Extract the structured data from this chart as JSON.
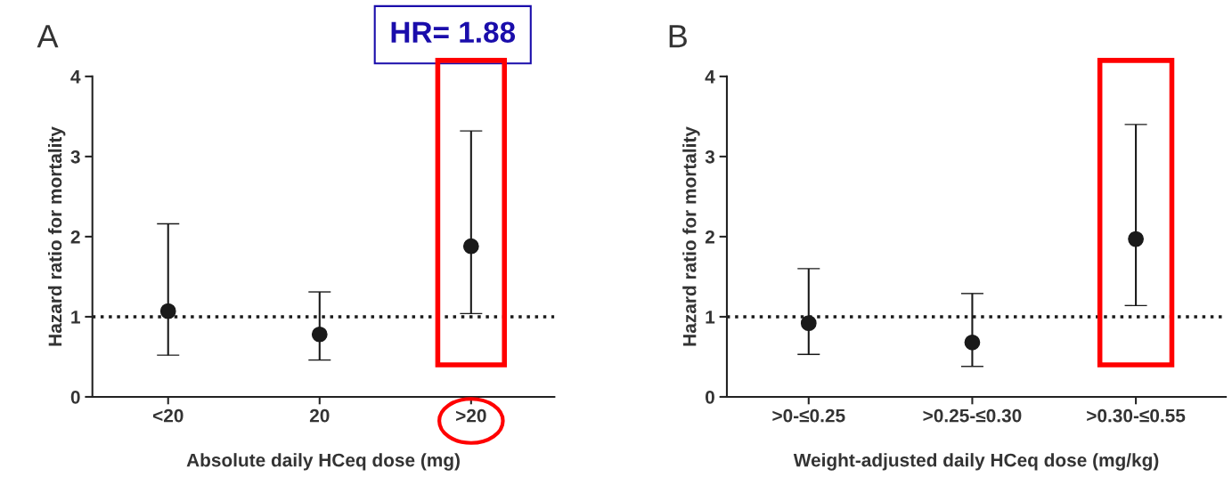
{
  "chart_data": [
    {
      "type": "scatter",
      "title": "A",
      "xlabel": "Absolute daily HCeq dose (mg)",
      "ylabel": "Hazard ratio for mortality",
      "categories": [
        "<20",
        "20",
        ">20"
      ],
      "series": [
        {
          "color": "#1a1a1a",
          "values": [
            1.07,
            0.78,
            1.88
          ],
          "errors": [
            [
              0.52,
              2.16
            ],
            [
              0.46,
              1.31
            ],
            [
              1.04,
              3.32
            ]
          ]
        }
      ],
      "ylim": [
        0,
        4
      ],
      "yticks": [
        0,
        1,
        2,
        3,
        4
      ],
      "marker": "circle",
      "grid": false,
      "legend": false,
      "ref_lines": [
        {
          "axis": "y",
          "value": 1,
          "color": "#1a1a1a",
          "line_style": "dotted"
        }
      ],
      "annotations": [
        "HR= 1.88"
      ]
    },
    {
      "type": "scatter",
      "title": "B",
      "xlabel": "Weight-adjusted daily HCeq dose (mg/kg)",
      "ylabel": "Hazard ratio for mortality",
      "categories": [
        ">0-≤0.25",
        ">0.25-≤0.30",
        ">0.30-≤0.55"
      ],
      "series": [
        {
          "color": "#1a1a1a",
          "values": [
            0.92,
            0.68,
            1.97
          ],
          "errors": [
            [
              0.53,
              1.6
            ],
            [
              0.38,
              1.29
            ],
            [
              1.14,
              3.4
            ]
          ]
        }
      ],
      "ylim": [
        0,
        4
      ],
      "yticks": [
        0,
        1,
        2,
        3,
        4
      ],
      "marker": "circle",
      "grid": false,
      "legend": false,
      "ref_lines": [
        {
          "axis": "y",
          "value": 1,
          "color": "#1a1a1a",
          "line_style": "dotted"
        }
      ]
    }
  ]
}
